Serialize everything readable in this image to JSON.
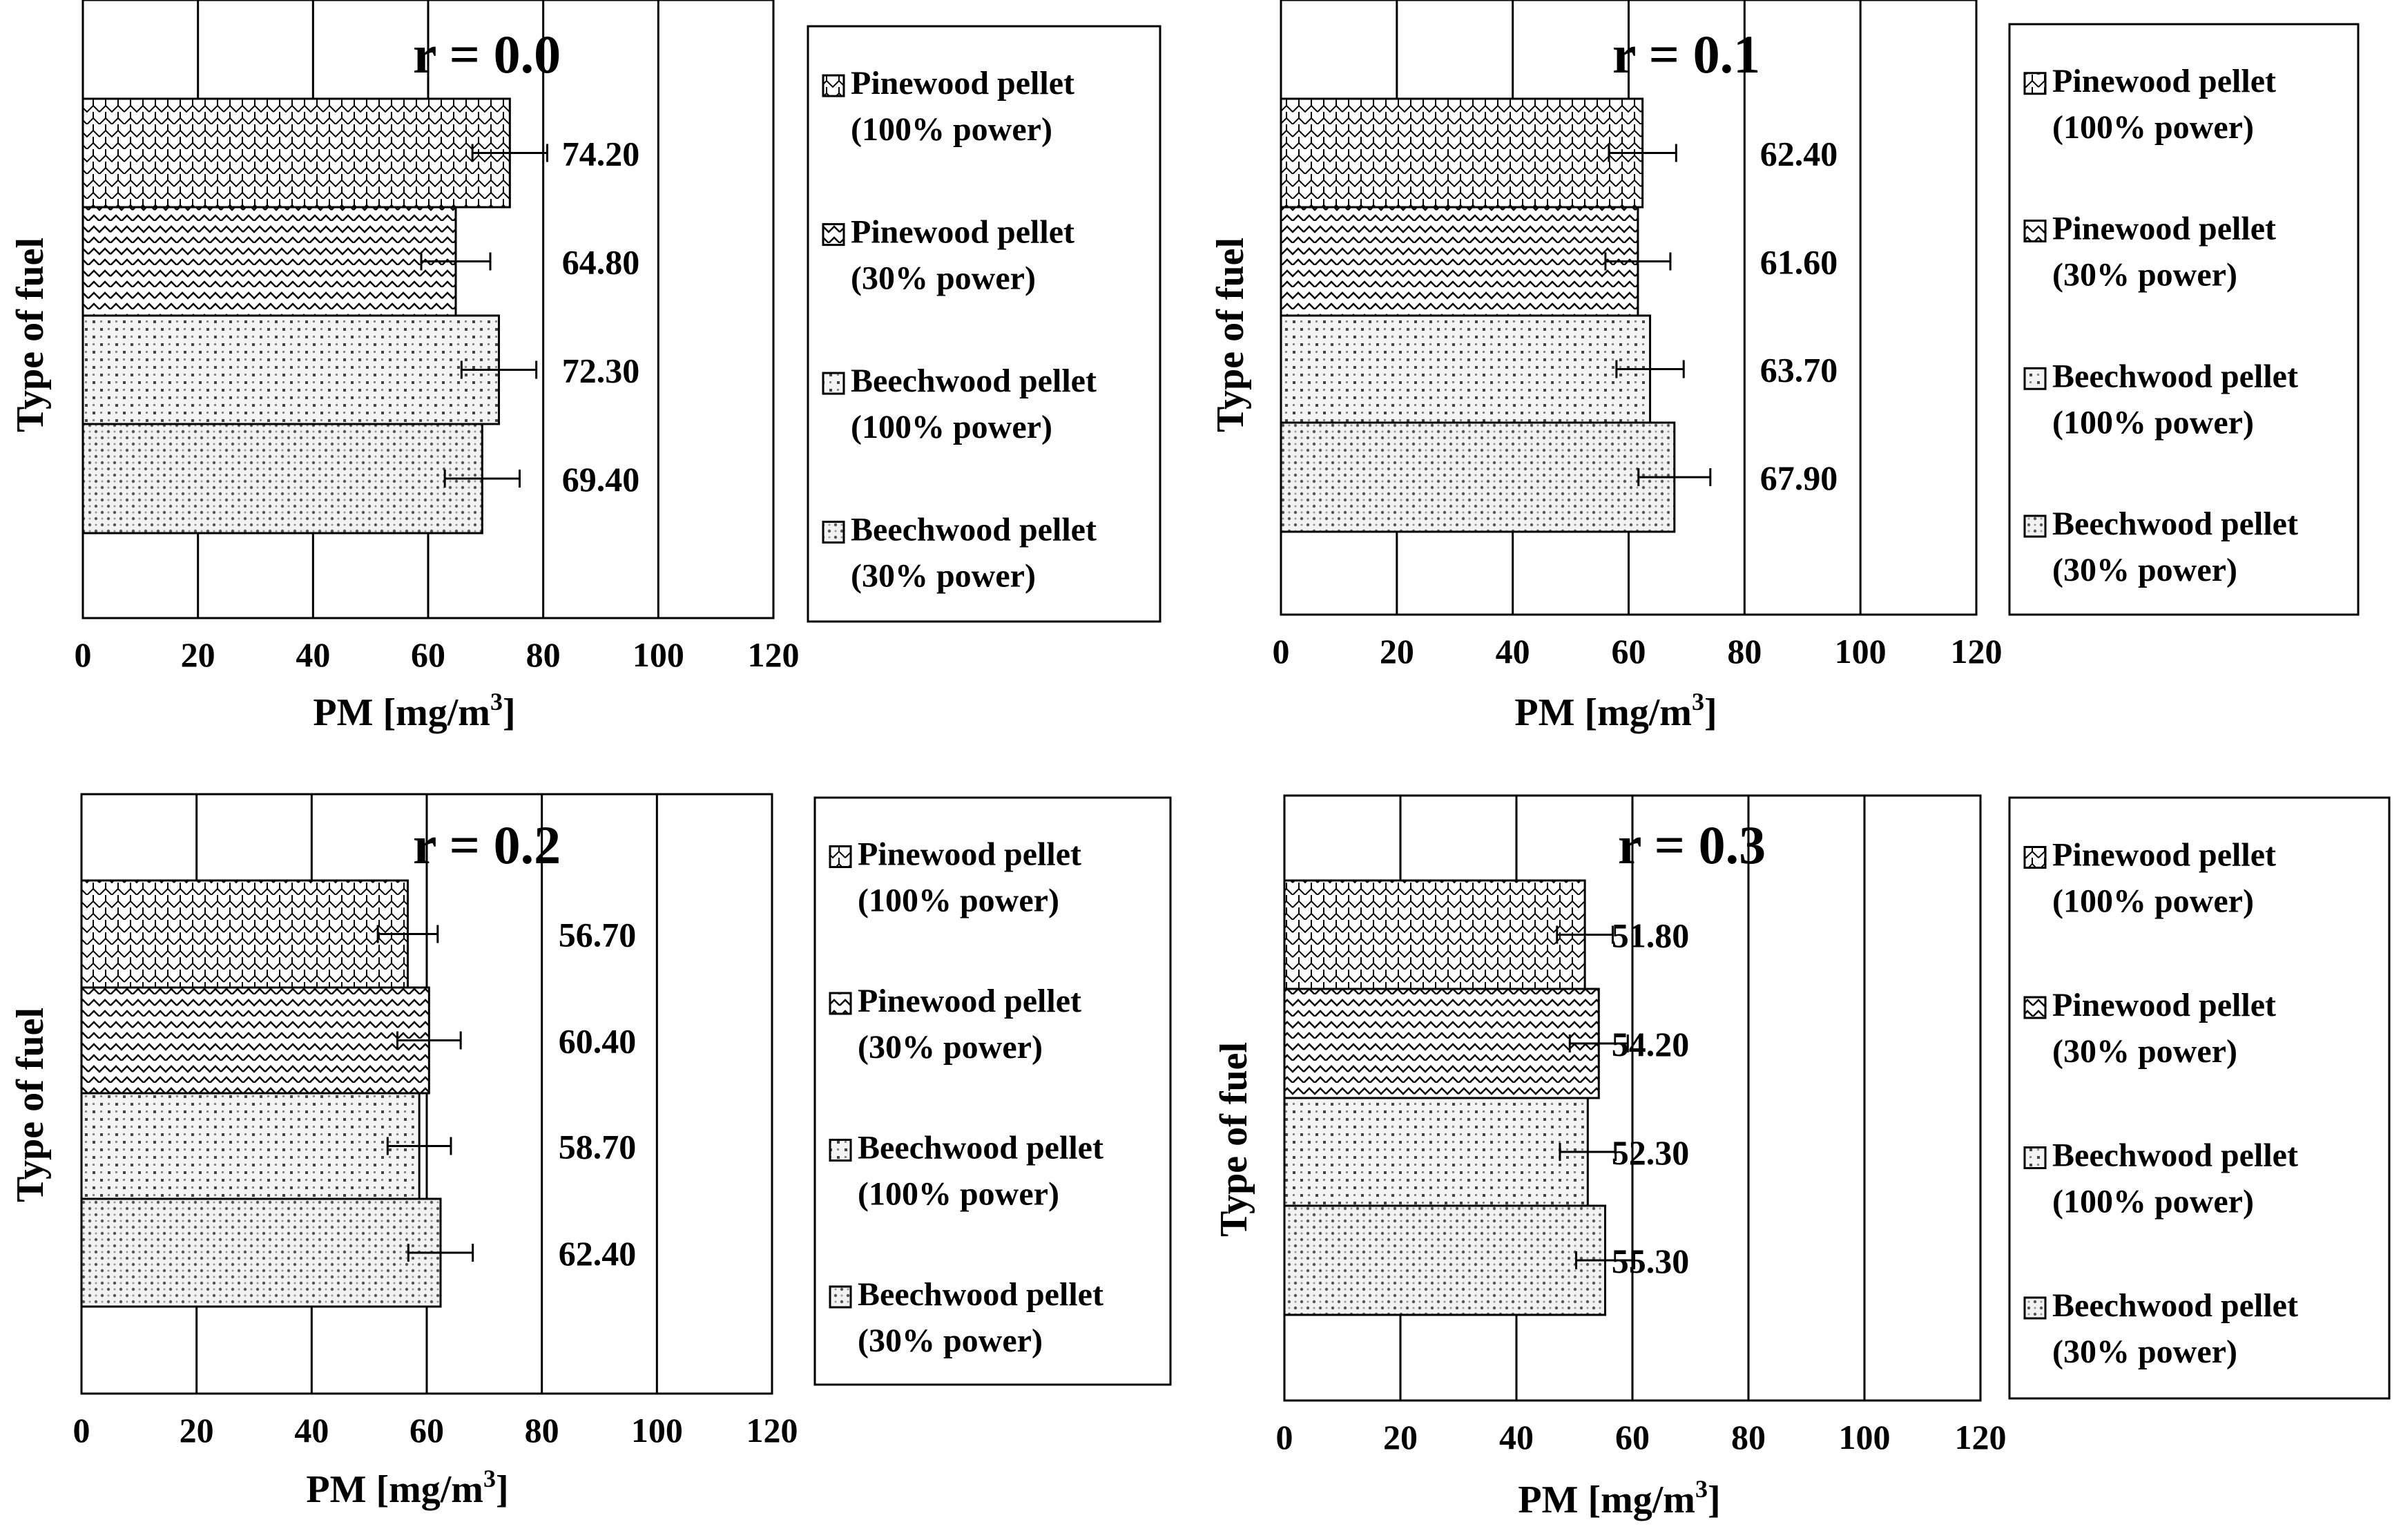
{
  "figure": {
    "shared_axis": {
      "xlabel_main": "PM [mg/m",
      "xlabel_sup": "3",
      "xlabel_end": "]",
      "ylabel": "Type of fuel",
      "xlim": [
        0,
        120
      ],
      "xticks": [
        0,
        20,
        40,
        60,
        80,
        100,
        120
      ]
    },
    "legend_items": [
      {
        "line1": "Pinewood pellet",
        "line2": "(100% power)"
      },
      {
        "line1": "Pinewood pellet",
        "line2": "(30% power)"
      },
      {
        "line1": "Beechwood pellet",
        "line2": "(100% power)"
      },
      {
        "line1": "Beechwood pellet",
        "line2": "(30% power)"
      }
    ]
  },
  "chart_data": [
    {
      "type": "bar",
      "orientation": "horizontal",
      "title": "r = 0.0",
      "categories": [
        "Pinewood pellet (100% power)",
        "Pinewood pellet (30% power)",
        "Beechwood pellet (100% power)",
        "Beechwood pellet (30% power)"
      ],
      "values": [
        74.2,
        64.8,
        72.3,
        69.4
      ],
      "labels": [
        "74.20",
        "64.80",
        "72.30",
        "69.40"
      ],
      "errors": [
        6.5,
        6.0,
        6.5,
        6.5
      ],
      "xlabel": "PM [mg/m3]",
      "ylabel": "Type of fuel",
      "xlim": [
        0,
        120
      ],
      "grid": true,
      "legend": "right"
    },
    {
      "type": "bar",
      "orientation": "horizontal",
      "title": "r = 0.1",
      "categories": [
        "Pinewood pellet (100% power)",
        "Pinewood pellet (30% power)",
        "Beechwood pellet (100% power)",
        "Beechwood pellet (30% power)"
      ],
      "values": [
        62.4,
        61.6,
        63.7,
        67.9
      ],
      "labels": [
        "62.40",
        "61.60",
        "63.70",
        "67.90"
      ],
      "errors": [
        5.8,
        5.6,
        5.8,
        6.2
      ],
      "xlabel": "PM [mg/m3]",
      "ylabel": "Type of fuel",
      "xlim": [
        0,
        120
      ],
      "grid": true,
      "legend": "right"
    },
    {
      "type": "bar",
      "orientation": "horizontal",
      "title": "r = 0.2",
      "categories": [
        "Pinewood pellet (100% power)",
        "Pinewood pellet (30% power)",
        "Beechwood pellet (100% power)",
        "Beechwood pellet (30% power)"
      ],
      "values": [
        56.7,
        60.4,
        58.7,
        62.4
      ],
      "labels": [
        "56.70",
        "60.40",
        "58.70",
        "62.40"
      ],
      "errors": [
        5.2,
        5.5,
        5.5,
        5.6
      ],
      "xlabel": "PM [mg/m3]",
      "ylabel": "Type of fuel",
      "xlim": [
        0,
        120
      ],
      "grid": true,
      "legend": "right"
    },
    {
      "type": "bar",
      "orientation": "horizontal",
      "title": "r = 0.3",
      "categories": [
        "Pinewood pellet (100% power)",
        "Pinewood pellet (30% power)",
        "Beechwood pellet (100% power)",
        "Beechwood pellet (30% power)"
      ],
      "values": [
        51.8,
        54.2,
        52.3,
        55.3
      ],
      "labels": [
        "51.80",
        "54.20",
        "52.30",
        "55.30"
      ],
      "errors": [
        4.8,
        5.0,
        4.8,
        5.0
      ],
      "xlabel": "PM [mg/m3]",
      "ylabel": "Type of fuel",
      "xlim": [
        0,
        120
      ],
      "grid": true,
      "legend": "right"
    }
  ]
}
